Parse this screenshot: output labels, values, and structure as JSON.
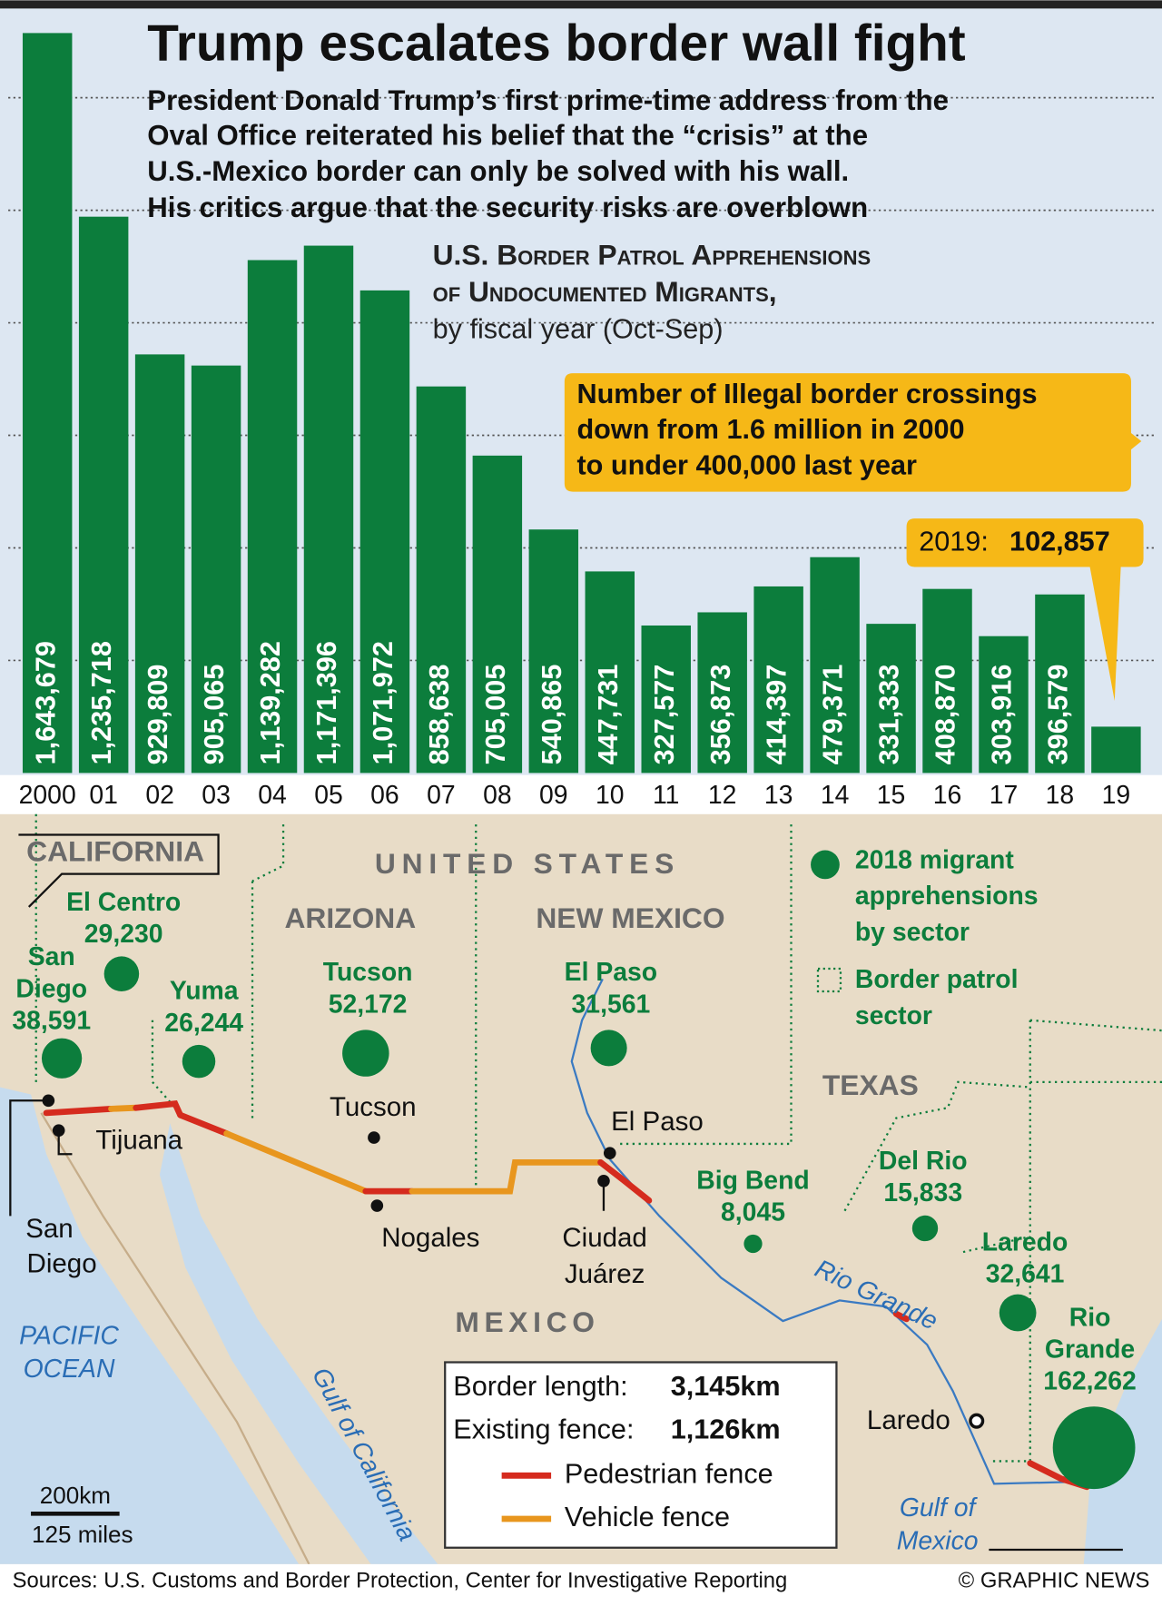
{
  "chart_data": {
    "type": "bar",
    "title": "Trump escalates border wall fight",
    "subtitle_lines": [
      "President Donald Trump’s first prime-time address from the",
      "Oval Office reiterated his belief that the “crisis” at the",
      "U.S.-Mexico border can only be solved with his wall.",
      "His critics argue that the security risks are overblown"
    ],
    "chart_label_lines": [
      "U.S. Border Patrol Apprehensions",
      "of Undocumented Migrants,"
    ],
    "chart_sublabel": "by fiscal year (Oct-Sep)",
    "categories": [
      "2000",
      "01",
      "02",
      "03",
      "04",
      "05",
      "06",
      "07",
      "08",
      "09",
      "10",
      "11",
      "12",
      "13",
      "14",
      "15",
      "16",
      "17",
      "18",
      "19"
    ],
    "values": [
      1643679,
      1235718,
      929809,
      905065,
      1139282,
      1171396,
      1071972,
      858638,
      705005,
      540865,
      447731,
      327577,
      356873,
      414397,
      479371,
      331333,
      408870,
      303916,
      396579,
      102857
    ],
    "value_labels": [
      "1,643,679",
      "1,235,718",
      "929,809",
      "905,065",
      "1,139,282",
      "1,171,396",
      "1,071,972",
      "858,638",
      "705,005",
      "540,865",
      "447,731",
      "327,577",
      "356,873",
      "414,397",
      "479,371",
      "331,333",
      "408,870",
      "303,916",
      "396,579",
      "102,857"
    ],
    "color": "#0c7d3c",
    "ylim": [
      0,
      1650000
    ],
    "yticks": [
      250000,
      500000,
      750000,
      1000000,
      1250000,
      1500000
    ],
    "grid": true,
    "annotation_lines": [
      "Number of Illegal border crossings",
      "down from 1.6 million in 2000",
      "to under 400,000 last year"
    ],
    "callout_prefix": "2019:"
  },
  "map": {
    "regions": {
      "california": "CALIFORNIA",
      "us": "UNITED STATES",
      "arizona": "ARIZONA",
      "new_mexico": "NEW MEXICO",
      "texas": "TEXAS",
      "mexico": "MEXICO"
    },
    "water": {
      "pacific": [
        "PACIFIC",
        "OCEAN"
      ],
      "gulf_california": "Gulf of California",
      "rio_grande": "Rio Grande",
      "gulf_mexico": [
        "Gulf of",
        "Mexico"
      ]
    },
    "cities": {
      "tucson": "Tucson",
      "tijuana": "Tijuana",
      "san_diego": [
        "San",
        "Diego"
      ],
      "nogales": "Nogales",
      "el_paso": "El Paso",
      "ciudad_juarez": [
        "Ciudad",
        "Juárez"
      ],
      "laredo": "Laredo"
    },
    "sectors": [
      {
        "name_lines": [
          "El Centro"
        ],
        "value": 29230,
        "value_label": "29,230"
      },
      {
        "name_lines": [
          "San",
          "Diego"
        ],
        "value": 38591,
        "value_label": "38,591"
      },
      {
        "name_lines": [
          "Yuma"
        ],
        "value": 26244,
        "value_label": "26,244"
      },
      {
        "name_lines": [
          "Tucson"
        ],
        "value": 52172,
        "value_label": "52,172"
      },
      {
        "name_lines": [
          "El Paso"
        ],
        "value": 31561,
        "value_label": "31,561"
      },
      {
        "name_lines": [
          "Big Bend"
        ],
        "value": 8045,
        "value_label": "8,045"
      },
      {
        "name_lines": [
          "Del Rio"
        ],
        "value": 15833,
        "value_label": "15,833"
      },
      {
        "name_lines": [
          "Laredo"
        ],
        "value": 32641,
        "value_label": "32,641"
      },
      {
        "name_lines": [
          "Rio",
          "Grande"
        ],
        "value": 162262,
        "value_label": "162,262"
      }
    ],
    "legend": {
      "circle_lines": [
        "2018 migrant",
        "apprehensions",
        "by sector"
      ],
      "sector_lines": [
        "Border patrol",
        "sector"
      ],
      "pedestrian": "Pedestrian fence",
      "vehicle": "Vehicle fence"
    },
    "facts": {
      "border_label": "Border length:",
      "border_value": "3,145km",
      "fence_label": "Existing fence:",
      "fence_value": "1,126km"
    },
    "scale": {
      "km": "200km",
      "miles": "125 miles"
    }
  },
  "footer": {
    "source": "Sources: U.S. Customs and Border Protection, Center for Investigative Reporting",
    "credit": "© GRAPHIC NEWS"
  }
}
